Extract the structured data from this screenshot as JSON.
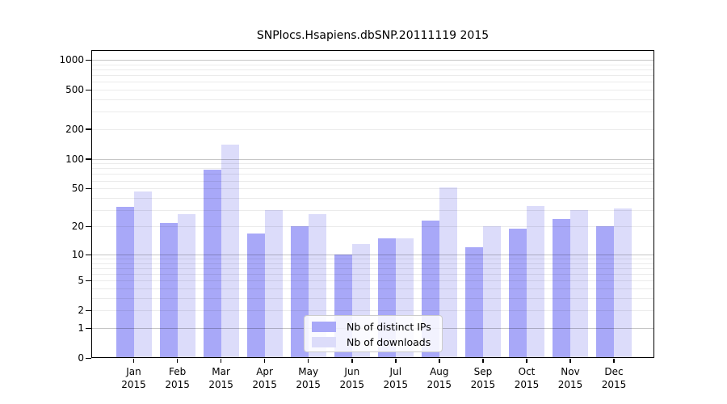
{
  "chart_data": {
    "type": "bar",
    "title": "SNPlocs.Hsapiens.dbSNP.20111119 2015",
    "categories": [
      "Jan 2015",
      "Feb 2015",
      "Mar 2015",
      "Apr 2015",
      "May 2015",
      "Jun 2015",
      "Jul 2015",
      "Aug 2015",
      "Sep 2015",
      "Oct 2015",
      "Nov 2015",
      "Dec 2015"
    ],
    "series": [
      {
        "name": "Nb of distinct IPs",
        "color": "#a8a8f8",
        "values": [
          32,
          22,
          77,
          17,
          20,
          10,
          15,
          23,
          12,
          19,
          24,
          20
        ]
      },
      {
        "name": "Nb of downloads",
        "color": "#dcdcfa",
        "values": [
          46,
          27,
          140,
          30,
          27,
          13,
          15,
          51,
          20,
          33,
          30,
          31
        ]
      }
    ],
    "xlabel": "",
    "ylabel": "",
    "y_scale": "log1p",
    "yticks": [
      0,
      1,
      2,
      5,
      10,
      20,
      50,
      100,
      200,
      500,
      1000
    ],
    "ylim": [
      0,
      1250
    ],
    "grid": true,
    "grid_major_color": "#c6c6c6",
    "grid_minor_color": "#ebebeb",
    "legend_position": "bottom-center-inside",
    "axis_color": "#000000",
    "background_color": "#ffffff"
  }
}
